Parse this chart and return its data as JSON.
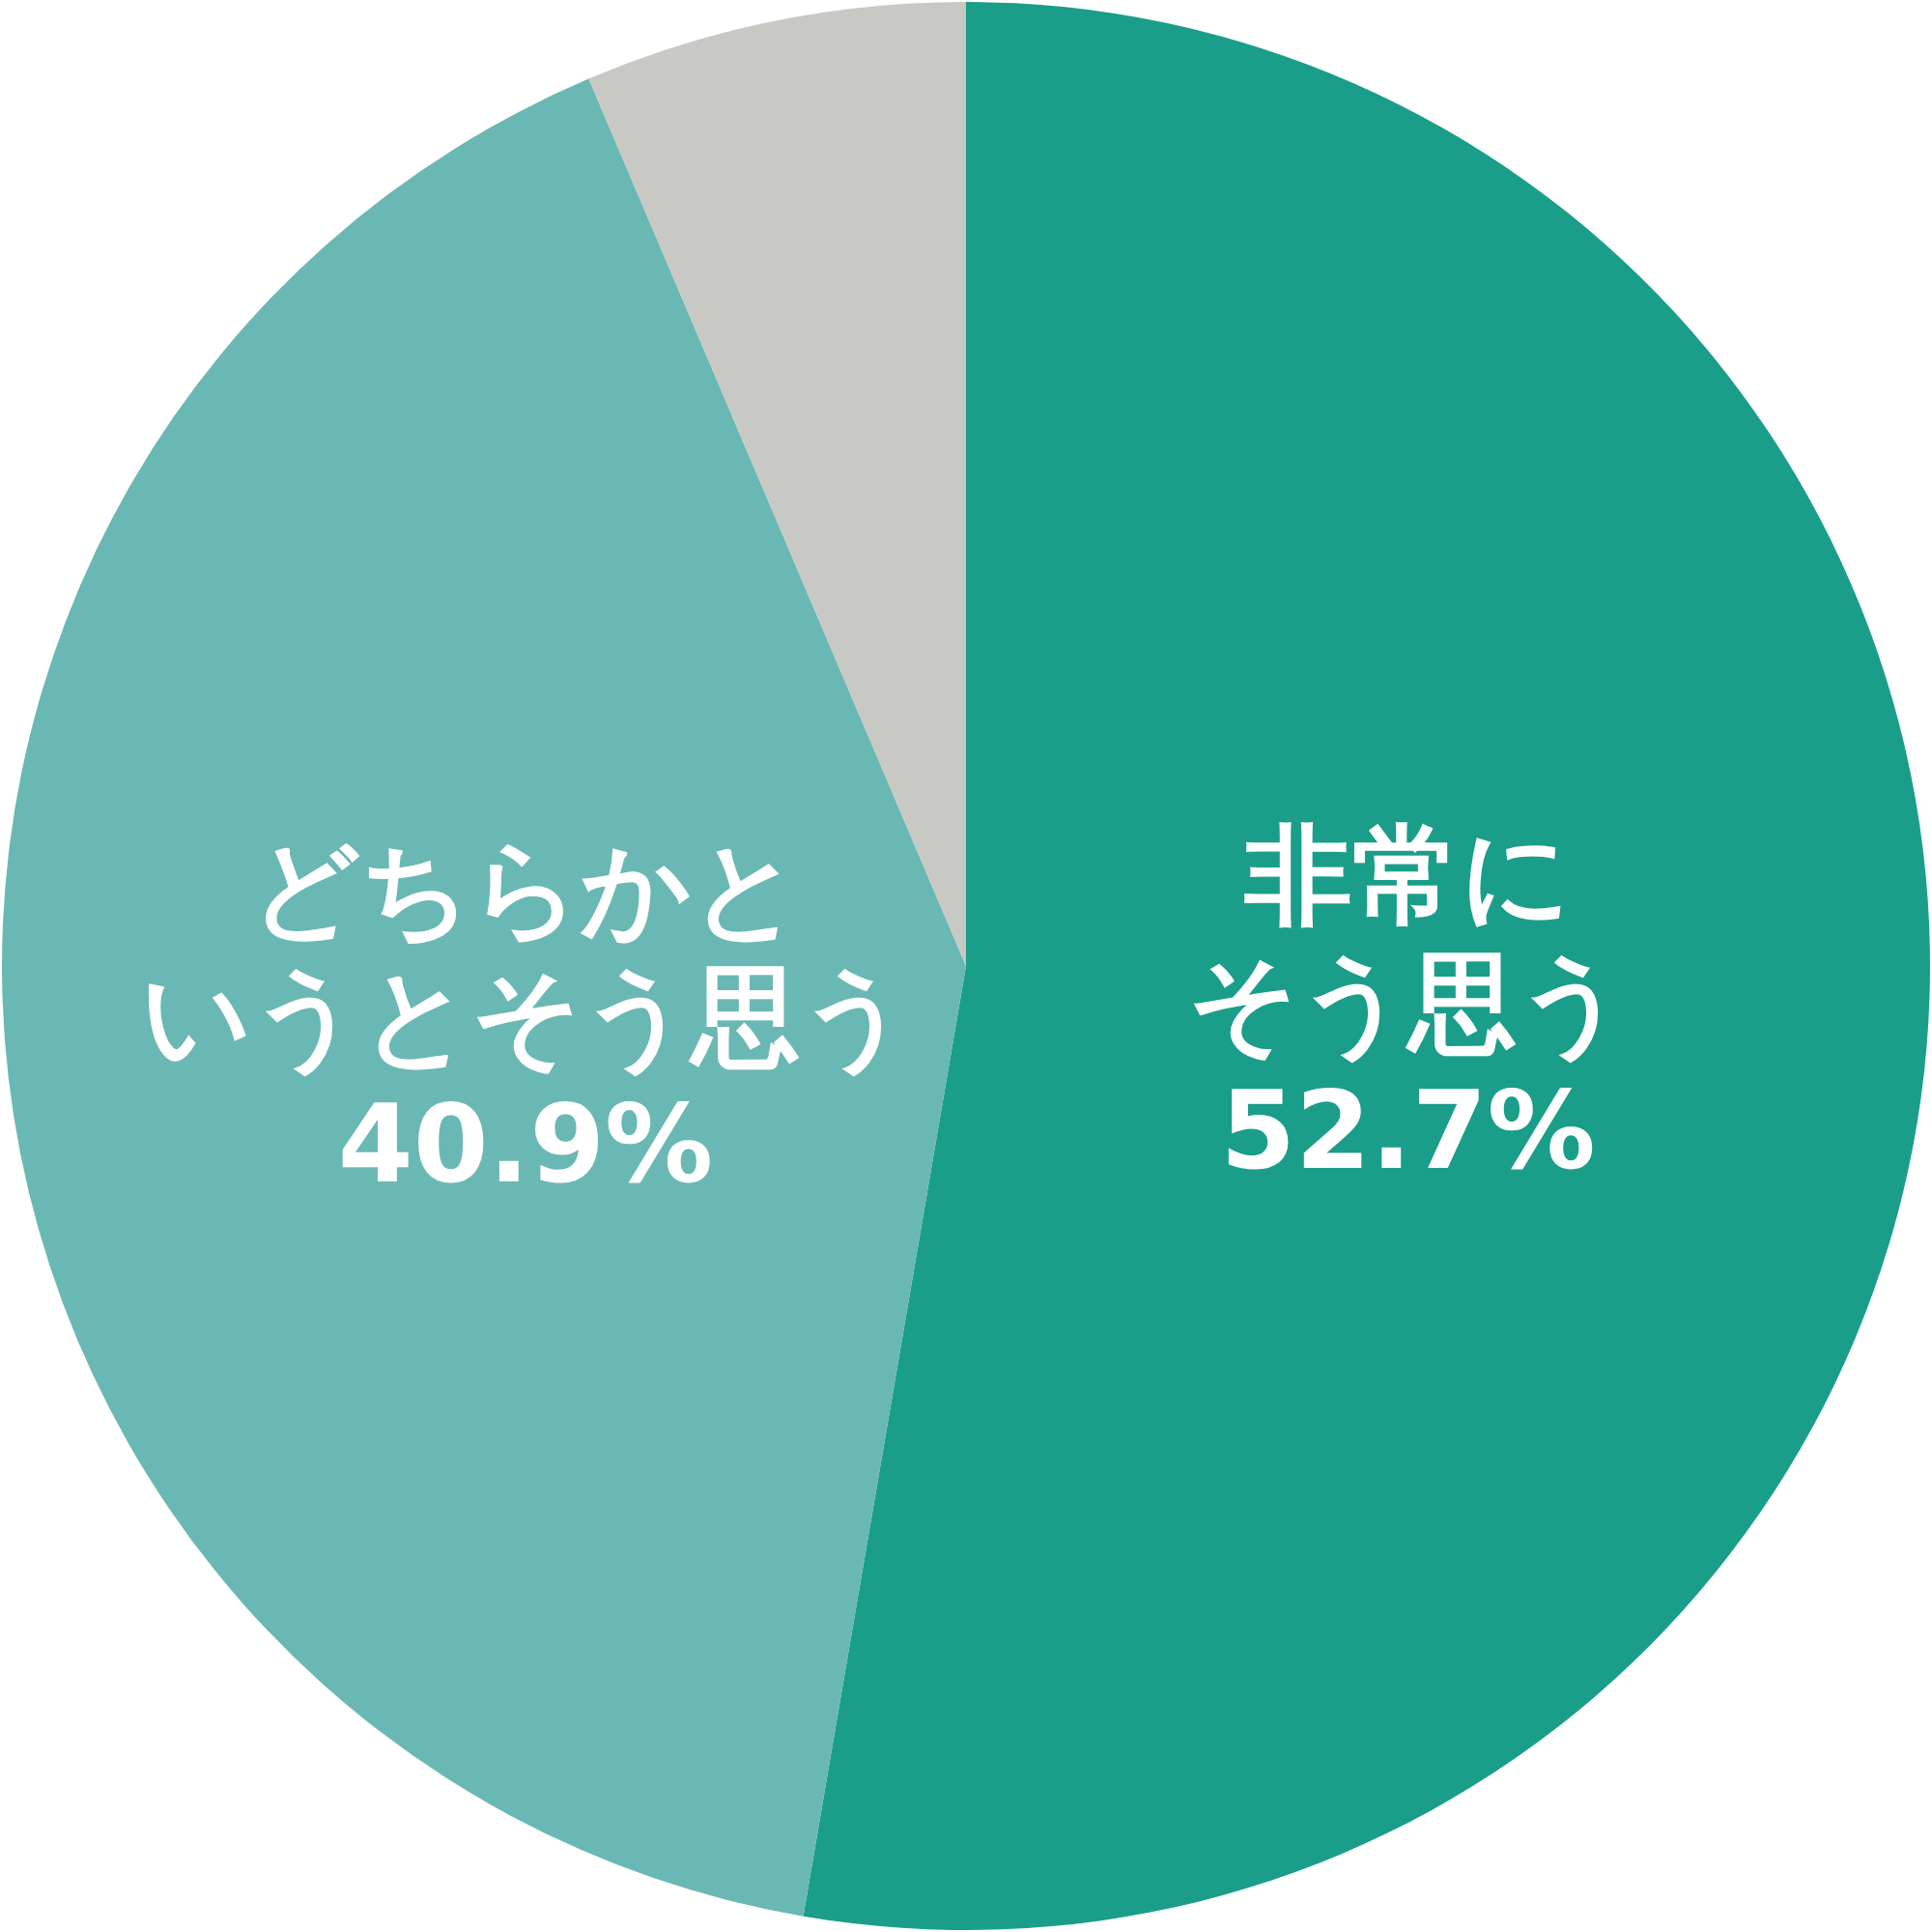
{
  "chart_data": {
    "type": "pie",
    "categories": [
      "非常にそう思う",
      "どちらかというとそう思う",
      null
    ],
    "values": [
      52.7,
      40.9,
      6.4
    ],
    "colors": [
      "#1a9e8a",
      "#6ab8b3",
      "#c8c8c4"
    ],
    "value_labels": [
      "52.7%",
      "40.9%",
      null
    ]
  }
}
